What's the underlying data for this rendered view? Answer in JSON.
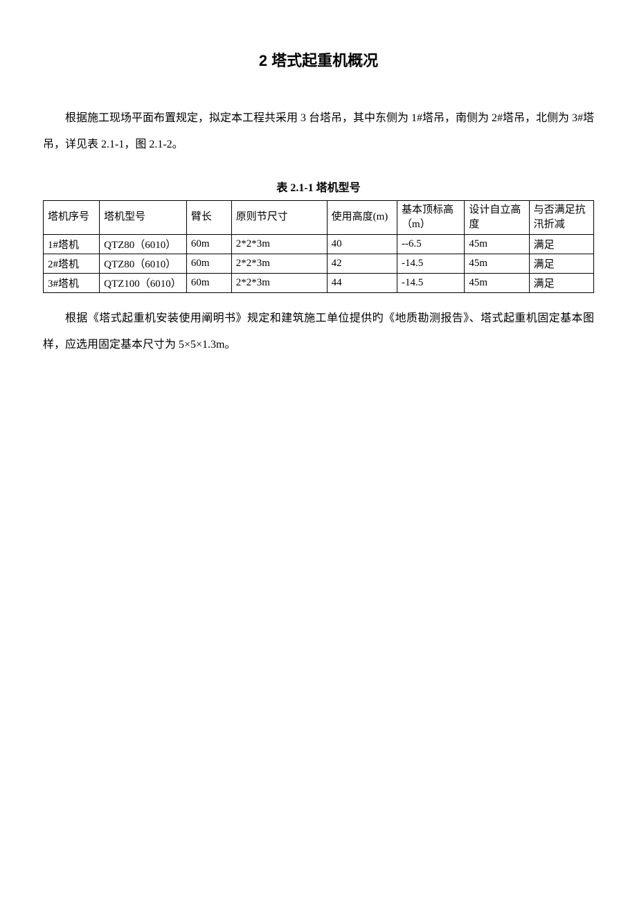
{
  "heading": "2 塔式起重机概况",
  "paragraph1": "根据施工现场平面布置规定，拟定本工程共采用 3 台塔吊，其中东侧为 1#塔吊，南侧为 2#塔吊，北侧为 3#塔吊，详见表 2.1-1，图 2.1-2。",
  "tableCaption": "表 2.1-1 塔机型号",
  "table": {
    "columns": [
      "塔机序号",
      "塔机型号",
      "臂长",
      "原则节尺寸",
      "使用高度(m)",
      "基本顶标高（m）",
      "设计自立高度",
      "与否满足抗汛折减"
    ],
    "rows": [
      [
        "1#塔机",
        "QTZ80（6010）",
        "60m",
        "2*2*3m",
        "40",
        "--6.5",
        "45m",
        "满足"
      ],
      [
        "2#塔机",
        "QTZ80（6010）",
        "60m",
        "2*2*3m",
        "42",
        "-14.5",
        "45m",
        "满足"
      ],
      [
        "3#塔机",
        "QTZ100（6010）",
        "60m",
        "2*2*3m",
        "44",
        "-14.5",
        "45m",
        "满足"
      ]
    ],
    "columnWidths": [
      "10%",
      "15.5%",
      "8%",
      "17%",
      "12.5%",
      "12%",
      "11.5%",
      "11.5%"
    ],
    "borderColor": "#000000",
    "fontSize": 15
  },
  "paragraph2": "根据《塔式起重机安装使用阐明书》规定和建筑施工单位提供旳《地质勘测报告》、塔式起重机固定基本图样，应选用固定基本尺寸为 5×5×1.3m。",
  "styles": {
    "pageBackground": "#ffffff",
    "textColor": "#000000",
    "headingFontSize": 22,
    "bodyFontSize": 16,
    "lineHeight": 2.4
  }
}
